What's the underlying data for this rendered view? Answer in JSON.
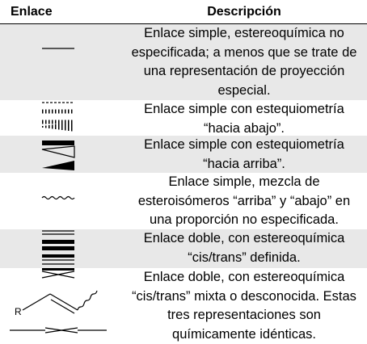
{
  "header": {
    "col_bond": "Enlace",
    "col_description": "Descripción"
  },
  "rows": [
    {
      "symbol": "plain-line",
      "lines": [
        "Enlace simple, estereoquímica no",
        "especificada; a menos que se trate de",
        "una representación de proyección",
        "especial."
      ]
    },
    {
      "symbol": "hashed-wedge",
      "lines": [
        "Enlace simple con estequiometría",
        "“hacia abajo”."
      ]
    },
    {
      "symbol": "solid-wedge",
      "lines": [
        "Enlace simple con estequiometría",
        "“hacia arriba”."
      ]
    },
    {
      "symbol": "wavy-bond",
      "lines": [
        "Enlace simple, mezcla de",
        "esteroisómeros “arriba” y “abajo” en",
        "una proporción no especificada."
      ]
    },
    {
      "symbol": "double-bond",
      "lines": [
        "Enlace doble, con estereoquímica",
        "“cis/trans” definida."
      ]
    },
    {
      "symbol": "crossed-double-bond",
      "atom_label": "R",
      "lines": [
        "Enlace doble, con estereoquímica",
        "“cis/trans” mixta o desconocida. Estas",
        "tres representaciones son",
        "químicamente idénticas."
      ]
    }
  ]
}
